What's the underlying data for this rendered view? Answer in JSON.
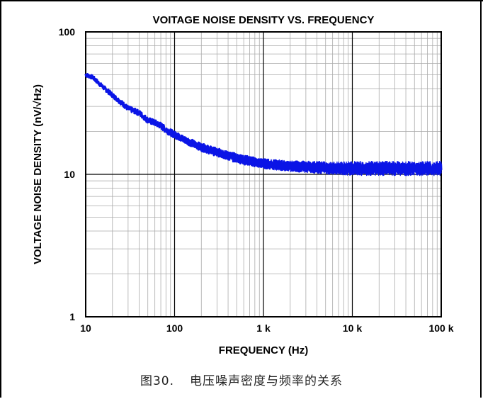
{
  "figure": {
    "caption_number": "图30.",
    "caption_text": "电压噪声密度与频率的关系"
  },
  "chart_data": {
    "type": "line",
    "title": "VOITAGE NOISE DENSITY VS. FREQUENCY",
    "xlabel": "FREQUENCY (Hz)",
    "ylabel": "VOLTAGE NOISE DENSITY (nV/√Hz)",
    "x_scale": "log",
    "y_scale": "log",
    "xlim": [
      10,
      100000
    ],
    "ylim": [
      1,
      100
    ],
    "x_ticks": [
      {
        "value": 10,
        "label": "10"
      },
      {
        "value": 100,
        "label": "100"
      },
      {
        "value": 1000,
        "label": "1 k"
      },
      {
        "value": 10000,
        "label": "10 k"
      },
      {
        "value": 100000,
        "label": "100 k"
      }
    ],
    "y_ticks": [
      {
        "value": 1,
        "label": "1"
      },
      {
        "value": 10,
        "label": "10"
      },
      {
        "value": 100,
        "label": "100"
      }
    ],
    "grid": true,
    "line_color": "#0a14e6",
    "series": [
      {
        "x": [
          10,
          12,
          15,
          20,
          25,
          30,
          40,
          50,
          60,
          70,
          80,
          100,
          130,
          160,
          200,
          300,
          400,
          500,
          700,
          1000,
          1500,
          2000,
          3000,
          5000,
          7000,
          10000,
          20000,
          30000,
          50000,
          70000,
          100000
        ],
        "values": [
          50,
          48,
          42,
          36,
          32,
          29,
          27,
          24,
          23,
          22,
          20.5,
          19,
          17.5,
          16.5,
          15.5,
          14.3,
          13.5,
          13,
          12.4,
          11.9,
          11.6,
          11.4,
          11.3,
          11.1,
          11.0,
          11.0,
          11.0,
          11.0,
          11.0,
          11.0,
          11.0
        ]
      }
    ]
  }
}
